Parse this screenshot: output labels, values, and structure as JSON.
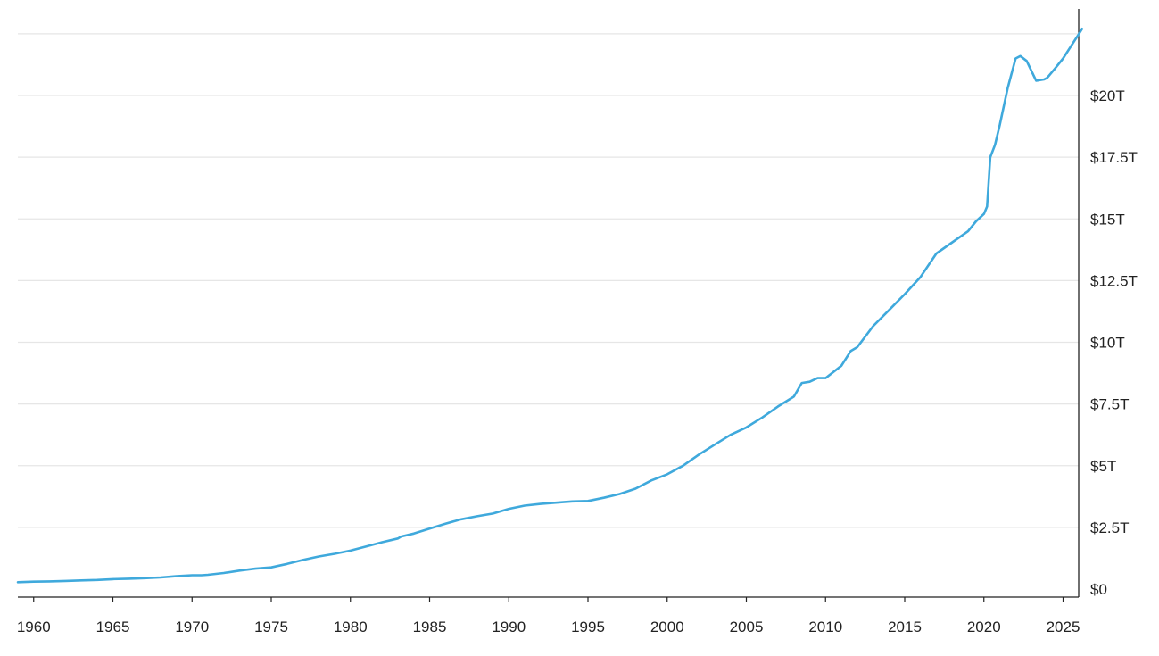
{
  "chart_data": {
    "type": "line",
    "title": "",
    "xlabel": "",
    "ylabel": "",
    "xlim": [
      1959,
      2026.2
    ],
    "ylim": [
      0,
      22.5
    ],
    "y_unit": "trillions USD",
    "grid": true,
    "x_ticks": [
      1960,
      1965,
      1970,
      1975,
      1980,
      1985,
      1990,
      1995,
      2000,
      2005,
      2010,
      2015,
      2020,
      2025
    ],
    "x_tick_labels": [
      "1960",
      "1965",
      "1970",
      "1975",
      "1980",
      "1985",
      "1990",
      "1995",
      "2000",
      "2005",
      "2010",
      "2015",
      "2020",
      "2025"
    ],
    "y_ticks": [
      0,
      2.5,
      5,
      7.5,
      10,
      12.5,
      15,
      17.5,
      20
    ],
    "y_tick_labels": [
      "$0",
      "$2.5T",
      "$5T",
      "$7.5T",
      "$10T",
      "$12.5T",
      "$15T",
      "$17.5T",
      "$20T"
    ],
    "y_axis_side": "right",
    "line_color": "#3fa9dc",
    "series": [
      {
        "name": "",
        "x": [
          1959.0,
          1960.0,
          1961.0,
          1962.0,
          1963.0,
          1964.0,
          1965.0,
          1966.0,
          1967.0,
          1968.0,
          1969.0,
          1970.0,
          1970.6,
          1971.0,
          1972.0,
          1973.0,
          1974.0,
          1975.0,
          1976.0,
          1977.0,
          1978.0,
          1979.0,
          1980.0,
          1981.0,
          1982.0,
          1983.0,
          1983.2,
          1984.0,
          1985.0,
          1986.0,
          1987.0,
          1988.0,
          1989.0,
          1990.0,
          1991.0,
          1992.0,
          1993.0,
          1994.0,
          1995.0,
          1996.0,
          1997.0,
          1998.0,
          1999.0,
          2000.0,
          2001.0,
          2002.0,
          2003.0,
          2004.0,
          2005.0,
          2006.0,
          2007.0,
          2008.0,
          2008.5,
          2009.0,
          2009.5,
          2010.0,
          2011.0,
          2011.6,
          2012.0,
          2013.0,
          2014.0,
          2015.0,
          2016.0,
          2017.0,
          2018.0,
          2019.0,
          2019.5,
          2020.0,
          2020.2,
          2020.4,
          2020.7,
          2021.0,
          2021.5,
          2022.0,
          2022.3,
          2022.7,
          2023.0,
          2023.3,
          2023.5,
          2023.8,
          2024.0,
          2024.5,
          2025.0,
          2025.5,
          2026.0,
          2026.2
        ],
        "values": [
          0.28,
          0.3,
          0.31,
          0.33,
          0.35,
          0.37,
          0.4,
          0.42,
          0.44,
          0.47,
          0.52,
          0.56,
          0.56,
          0.58,
          0.65,
          0.75,
          0.83,
          0.88,
          1.02,
          1.18,
          1.32,
          1.43,
          1.56,
          1.73,
          1.9,
          2.05,
          2.13,
          2.25,
          2.45,
          2.65,
          2.83,
          2.95,
          3.06,
          3.25,
          3.38,
          3.45,
          3.5,
          3.55,
          3.57,
          3.7,
          3.85,
          4.07,
          4.4,
          4.65,
          5.0,
          5.45,
          5.85,
          6.25,
          6.55,
          6.95,
          7.4,
          7.8,
          8.35,
          8.4,
          8.55,
          8.55,
          9.05,
          9.65,
          9.8,
          10.65,
          11.3,
          11.95,
          12.65,
          13.6,
          14.05,
          14.5,
          14.9,
          15.2,
          15.5,
          17.5,
          18.0,
          18.8,
          20.3,
          21.5,
          21.6,
          21.4,
          21.0,
          20.6,
          20.62,
          20.65,
          20.72,
          21.1,
          21.5,
          22.0,
          22.5,
          22.7
        ]
      }
    ]
  }
}
